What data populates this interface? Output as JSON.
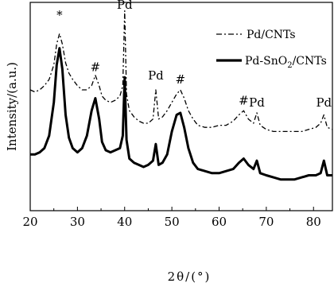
{
  "chart_data": {
    "type": "line",
    "title": "",
    "xlabel": "2θ/(°)",
    "ylabel": "Intensity/(a.u.)",
    "xlim": [
      20,
      84
    ],
    "ylim": [
      0,
      100
    ],
    "x_ticks": [
      20,
      30,
      40,
      50,
      60,
      70,
      80
    ],
    "y_ticks_visible": false,
    "grid": false,
    "legend": {
      "placement": "top-right",
      "entries": [
        {
          "label": "Pd/CNTs",
          "style": "dash-dot"
        },
        {
          "label_main": "Pd-SnO",
          "label_sub": "2",
          "label_tail": "/CNTs",
          "style": "solid-bold"
        }
      ]
    },
    "annotations": [
      {
        "text": "*",
        "x": 26.2,
        "y": 92
      },
      {
        "text": "Pd",
        "x": 40.0,
        "y": 97
      },
      {
        "text": "#",
        "x": 33.8,
        "y": 67
      },
      {
        "text": "Pd",
        "x": 46.6,
        "y": 63
      },
      {
        "text": "#",
        "x": 51.8,
        "y": 61
      },
      {
        "text": "#",
        "x": 65.2,
        "y": 51
      },
      {
        "text": "Pd",
        "x": 68.0,
        "y": 50
      },
      {
        "text": "Pd",
        "x": 82.2,
        "y": 50
      }
    ],
    "series": [
      {
        "name": "Pd/CNTs",
        "style": "dash-dot",
        "x": [
          20,
          21,
          22,
          23,
          24,
          25,
          25.6,
          26.2,
          26.8,
          27.5,
          28.2,
          29,
          30,
          31,
          32,
          33,
          33.8,
          34.6,
          35.2,
          36,
          37,
          38,
          39,
          39.6,
          40.0,
          40.4,
          41,
          42,
          43,
          44,
          45,
          46,
          46.6,
          47.2,
          48,
          49,
          50,
          51,
          51.8,
          52.6,
          53.5,
          54.5,
          55.5,
          57,
          58.5,
          60,
          61.5,
          63,
          64.2,
          65.2,
          66.2,
          67.3,
          68.0,
          68.7,
          70,
          71.5,
          73,
          74.5,
          76,
          77.5,
          79,
          80.5,
          81.5,
          82.2,
          82.9,
          84
        ],
        "y": [
          58,
          57,
          58,
          60,
          63,
          70,
          80,
          85,
          80,
          71,
          66,
          63,
          60,
          58,
          58,
          60,
          65,
          60,
          55,
          53,
          52,
          53,
          55,
          60,
          96,
          56,
          48,
          45,
          43,
          42,
          42,
          44,
          58,
          44,
          45,
          48,
          52,
          56,
          58,
          54,
          48,
          44,
          41,
          40,
          40,
          41,
          41,
          43,
          46,
          48,
          44,
          42,
          47,
          41,
          39,
          38,
          38,
          38,
          38,
          38,
          39,
          40,
          42,
          46,
          40,
          39
        ]
      },
      {
        "name": "Pd-SnO2/CNTs",
        "style": "solid-bold",
        "x": [
          20,
          21,
          22,
          23,
          24,
          25,
          25.6,
          26.2,
          26.8,
          27.5,
          28.2,
          29,
          30,
          31,
          32,
          33,
          33.8,
          34.6,
          35.2,
          36,
          37,
          38,
          39,
          39.6,
          40.0,
          40.4,
          41,
          42,
          43,
          44,
          45,
          46,
          46.6,
          47.2,
          48,
          49,
          50,
          51,
          51.8,
          52.6,
          53.5,
          54.5,
          55.5,
          57,
          58.5,
          60,
          61.5,
          63,
          64.2,
          65.2,
          66.2,
          67.3,
          68.0,
          68.7,
          70,
          71.5,
          73,
          74.5,
          76,
          77.5,
          79,
          80.5,
          81.5,
          82.2,
          82.9,
          84
        ],
        "y": [
          27,
          27,
          28,
          30,
          36,
          52,
          70,
          78,
          68,
          46,
          35,
          30,
          28,
          30,
          36,
          48,
          54,
          44,
          33,
          29,
          28,
          29,
          30,
          36,
          64,
          34,
          25,
          23,
          22,
          21,
          22,
          24,
          32,
          22,
          23,
          27,
          38,
          46,
          47,
          40,
          30,
          23,
          20,
          19,
          18,
          18,
          19,
          20,
          23,
          25,
          22,
          20,
          24,
          18,
          17,
          16,
          15,
          15,
          15,
          16,
          17,
          17,
          18,
          24,
          17,
          17
        ]
      }
    ]
  }
}
